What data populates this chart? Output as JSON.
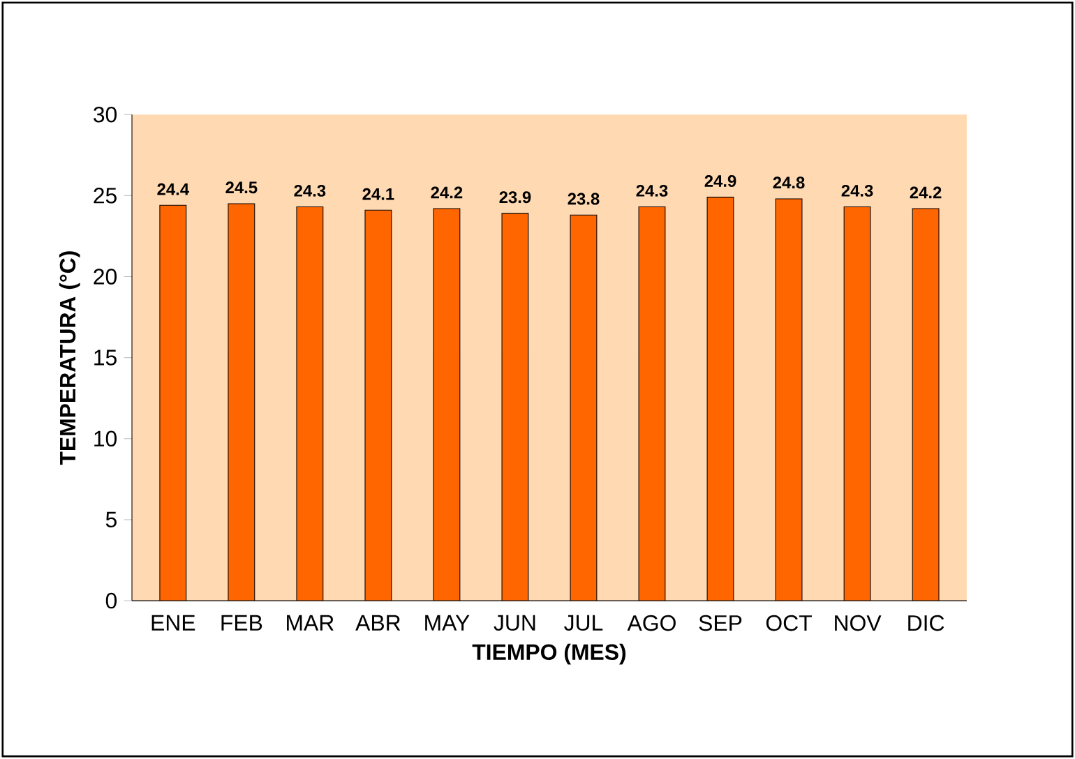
{
  "chart_data": {
    "type": "bar",
    "xlabel": "TIEMPO (MES)",
    "ylabel": "TEMPERATURA (°C)",
    "categories": [
      "ENE",
      "FEB",
      "MAR",
      "ABR",
      "MAY",
      "JUN",
      "JUL",
      "AGO",
      "SEP",
      "OCT",
      "NOV",
      "DIC"
    ],
    "values": [
      24.4,
      24.5,
      24.3,
      24.1,
      24.2,
      23.9,
      23.8,
      24.3,
      24.9,
      24.8,
      24.3,
      24.2
    ],
    "color": "#ff6600",
    "ylim": [
      0,
      30
    ],
    "yticks": [
      0,
      5,
      10,
      15,
      20,
      25,
      30
    ],
    "data_labels": true
  }
}
